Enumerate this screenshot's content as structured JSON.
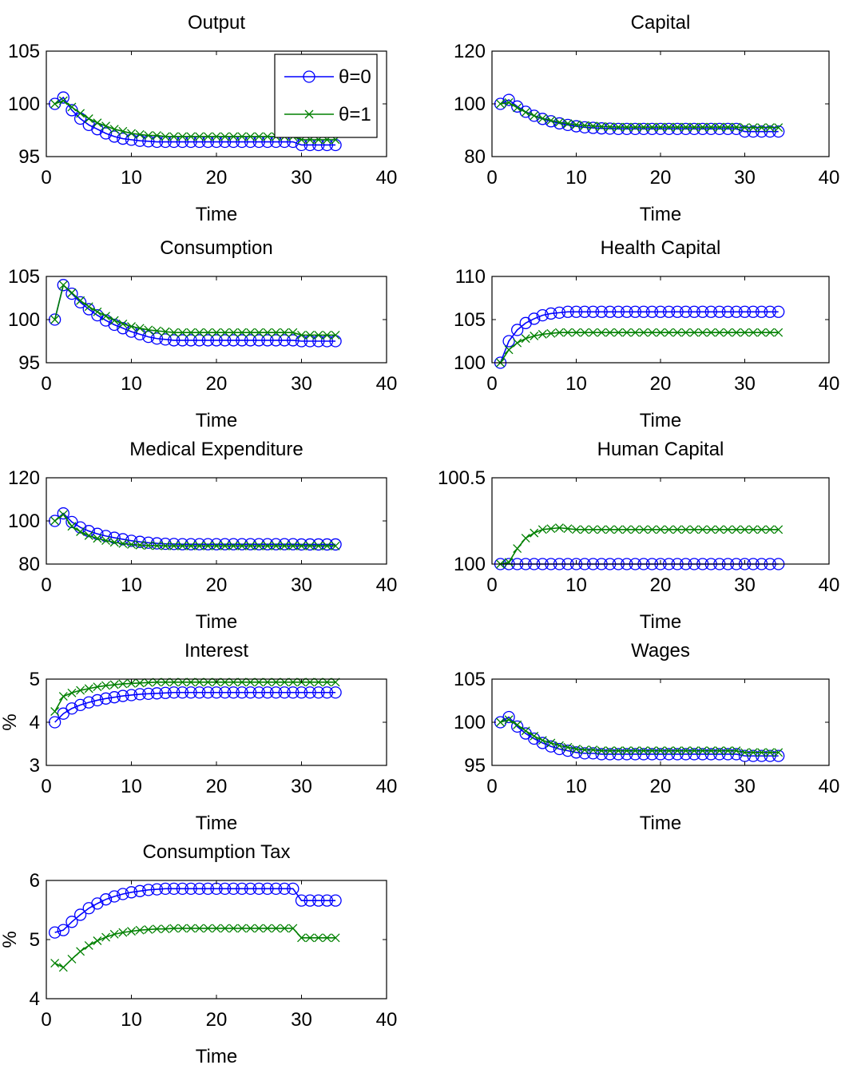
{
  "legend": {
    "placement": "top-right (Output panel)",
    "entries": [
      {
        "label": "θ=0",
        "color": "#0000ff",
        "marker": "circle"
      },
      {
        "label": "θ=1",
        "color": "#008000",
        "marker": "x"
      }
    ]
  },
  "chart_data": [
    {
      "type": "line",
      "title": "Output",
      "xlabel": "Time",
      "ylabel": "",
      "xlim": [
        0,
        40
      ],
      "ylim": [
        95,
        105
      ],
      "xticks": [
        0,
        10,
        20,
        30,
        40
      ],
      "yticks": [
        95,
        100,
        105
      ],
      "x": [
        1,
        2,
        3,
        4,
        5,
        6,
        7,
        8,
        9,
        10,
        11,
        12,
        13,
        14,
        15,
        16,
        17,
        18,
        19,
        20,
        21,
        22,
        23,
        24,
        25,
        26,
        27,
        28,
        29,
        30,
        31,
        32,
        33,
        34
      ],
      "series": [
        {
          "name": "θ=0",
          "values": [
            100,
            100.6,
            99.4,
            98.6,
            98,
            97.6,
            97.2,
            96.9,
            96.7,
            96.6,
            96.5,
            96.45,
            96.4,
            96.4,
            96.4,
            96.4,
            96.4,
            96.4,
            96.4,
            96.4,
            96.4,
            96.4,
            96.4,
            96.4,
            96.4,
            96.4,
            96.4,
            96.4,
            96.4,
            96.1,
            96.1,
            96.1,
            96.1,
            96.1
          ]
        },
        {
          "name": "θ=1",
          "values": [
            100,
            100.3,
            99.7,
            99.1,
            98.6,
            98.2,
            97.9,
            97.6,
            97.4,
            97.2,
            97.1,
            97,
            97,
            96.9,
            96.9,
            96.9,
            96.9,
            96.9,
            96.9,
            96.9,
            96.9,
            96.9,
            96.9,
            96.9,
            96.9,
            96.9,
            96.9,
            96.9,
            96.9,
            96.6,
            96.6,
            96.6,
            96.6,
            96.6
          ]
        }
      ]
    },
    {
      "type": "line",
      "title": "Capital",
      "xlabel": "Time",
      "ylabel": "",
      "xlim": [
        0,
        40
      ],
      "ylim": [
        80,
        120
      ],
      "xticks": [
        0,
        10,
        20,
        30,
        40
      ],
      "yticks": [
        80,
        100,
        120
      ],
      "x": [
        1,
        2,
        3,
        4,
        5,
        6,
        7,
        8,
        9,
        10,
        11,
        12,
        13,
        14,
        15,
        16,
        17,
        18,
        19,
        20,
        21,
        22,
        23,
        24,
        25,
        26,
        27,
        28,
        29,
        30,
        31,
        32,
        33,
        34
      ],
      "series": [
        {
          "name": "θ=0",
          "values": [
            100,
            101.5,
            99,
            97,
            95.5,
            94.3,
            93.4,
            92.6,
            92,
            91.5,
            91.1,
            90.9,
            90.7,
            90.6,
            90.5,
            90.5,
            90.5,
            90.5,
            90.5,
            90.5,
            90.5,
            90.5,
            90.5,
            90.5,
            90.5,
            90.5,
            90.5,
            90.5,
            90.5,
            89.5,
            89.5,
            89.5,
            89.5,
            89.5
          ]
        },
        {
          "name": "θ=1",
          "values": [
            100,
            100.5,
            98.5,
            96.8,
            95.5,
            94.5,
            93.7,
            93,
            92.5,
            92.1,
            91.8,
            91.6,
            91.4,
            91.3,
            91.2,
            91.2,
            91.2,
            91.2,
            91.2,
            91.2,
            91.2,
            91.2,
            91.2,
            91.2,
            91.2,
            91.2,
            91.2,
            91.2,
            91.2,
            91,
            91,
            91,
            91,
            91
          ]
        }
      ]
    },
    {
      "type": "line",
      "title": "Consumption",
      "xlabel": "Time",
      "ylabel": "",
      "xlim": [
        0,
        40
      ],
      "ylim": [
        95,
        105
      ],
      "xticks": [
        0,
        10,
        20,
        30,
        40
      ],
      "yticks": [
        95,
        100,
        105
      ],
      "x": [
        1,
        2,
        3,
        4,
        5,
        6,
        7,
        8,
        9,
        10,
        11,
        12,
        13,
        14,
        15,
        16,
        17,
        18,
        19,
        20,
        21,
        22,
        23,
        24,
        25,
        26,
        27,
        28,
        29,
        30,
        31,
        32,
        33,
        34
      ],
      "series": [
        {
          "name": "θ=0",
          "values": [
            100,
            104,
            103,
            102,
            101.2,
            100.5,
            99.9,
            99.4,
            99,
            98.6,
            98.3,
            98,
            97.8,
            97.7,
            97.6,
            97.6,
            97.6,
            97.6,
            97.6,
            97.6,
            97.6,
            97.6,
            97.6,
            97.6,
            97.6,
            97.6,
            97.6,
            97.6,
            97.6,
            97.5,
            97.5,
            97.5,
            97.5,
            97.5
          ]
        },
        {
          "name": "θ=1",
          "values": [
            100,
            104,
            103.1,
            102.2,
            101.5,
            100.9,
            100.4,
            99.9,
            99.5,
            99.2,
            99,
            98.8,
            98.7,
            98.6,
            98.5,
            98.5,
            98.5,
            98.5,
            98.5,
            98.5,
            98.5,
            98.5,
            98.5,
            98.5,
            98.5,
            98.5,
            98.5,
            98.5,
            98.5,
            98.2,
            98.2,
            98.2,
            98.2,
            98.2
          ]
        }
      ]
    },
    {
      "type": "line",
      "title": "Health Capital",
      "xlabel": "Time",
      "ylabel": "",
      "xlim": [
        0,
        40
      ],
      "ylim": [
        100,
        110
      ],
      "xticks": [
        0,
        10,
        20,
        30,
        40
      ],
      "yticks": [
        100,
        105,
        110
      ],
      "x": [
        1,
        2,
        3,
        4,
        5,
        6,
        7,
        8,
        9,
        10,
        11,
        12,
        13,
        14,
        15,
        16,
        17,
        18,
        19,
        20,
        21,
        22,
        23,
        24,
        25,
        26,
        27,
        28,
        29,
        30,
        31,
        32,
        33,
        34
      ],
      "series": [
        {
          "name": "θ=0",
          "values": [
            100,
            102.5,
            103.8,
            104.6,
            105.1,
            105.5,
            105.7,
            105.8,
            105.9,
            105.9,
            105.9,
            105.9,
            105.9,
            105.9,
            105.9,
            105.9,
            105.9,
            105.9,
            105.9,
            105.9,
            105.9,
            105.9,
            105.9,
            105.9,
            105.9,
            105.9,
            105.9,
            105.9,
            105.9,
            105.9,
            105.9,
            105.9,
            105.9,
            105.9
          ]
        },
        {
          "name": "θ=1",
          "values": [
            100,
            101.5,
            102.3,
            102.8,
            103.1,
            103.3,
            103.4,
            103.5,
            103.5,
            103.5,
            103.5,
            103.5,
            103.5,
            103.5,
            103.5,
            103.5,
            103.5,
            103.5,
            103.5,
            103.5,
            103.5,
            103.5,
            103.5,
            103.5,
            103.5,
            103.5,
            103.5,
            103.5,
            103.5,
            103.5,
            103.5,
            103.5,
            103.5,
            103.5
          ]
        }
      ]
    },
    {
      "type": "line",
      "title": "Medical Expenditure",
      "xlabel": "Time",
      "ylabel": "",
      "xlim": [
        0,
        40
      ],
      "ylim": [
        80,
        120
      ],
      "xticks": [
        0,
        10,
        20,
        30,
        40
      ],
      "yticks": [
        80,
        100,
        120
      ],
      "x": [
        1,
        2,
        3,
        4,
        5,
        6,
        7,
        8,
        9,
        10,
        11,
        12,
        13,
        14,
        15,
        16,
        17,
        18,
        19,
        20,
        21,
        22,
        23,
        24,
        25,
        26,
        27,
        28,
        29,
        30,
        31,
        32,
        33,
        34
      ],
      "series": [
        {
          "name": "θ=0",
          "values": [
            100,
            103.5,
            99.5,
            97,
            95.3,
            94,
            93,
            92.2,
            91.5,
            90.8,
            90.3,
            89.9,
            89.6,
            89.4,
            89.3,
            89.2,
            89.2,
            89.2,
            89.2,
            89.2,
            89.2,
            89.2,
            89.2,
            89.2,
            89.2,
            89.2,
            89.2,
            89.2,
            89.2,
            89.1,
            89.1,
            89.1,
            89.1,
            89.1
          ]
        },
        {
          "name": "θ=1",
          "values": [
            100,
            103,
            97.5,
            95,
            93.2,
            91.9,
            90.9,
            90.1,
            89.5,
            89.1,
            88.8,
            88.6,
            88.5,
            88.4,
            88.4,
            88.4,
            88.4,
            88.4,
            88.4,
            88.4,
            88.4,
            88.4,
            88.4,
            88.4,
            88.4,
            88.4,
            88.4,
            88.4,
            88.4,
            88.4,
            88.4,
            88.4,
            88.4,
            88.4
          ]
        }
      ]
    },
    {
      "type": "line",
      "title": "Human Capital",
      "xlabel": "Time",
      "ylabel": "",
      "xlim": [
        0,
        40
      ],
      "ylim": [
        100,
        100.5
      ],
      "xticks": [
        0,
        10,
        20,
        30,
        40
      ],
      "yticks": [
        100,
        100.5
      ],
      "x": [
        1,
        2,
        3,
        4,
        5,
        6,
        7,
        8,
        9,
        10,
        11,
        12,
        13,
        14,
        15,
        16,
        17,
        18,
        19,
        20,
        21,
        22,
        23,
        24,
        25,
        26,
        27,
        28,
        29,
        30,
        31,
        32,
        33,
        34
      ],
      "series": [
        {
          "name": "θ=0",
          "values": [
            100,
            100,
            100,
            100,
            100,
            100,
            100,
            100,
            100,
            100,
            100,
            100,
            100,
            100,
            100,
            100,
            100,
            100,
            100,
            100,
            100,
            100,
            100,
            100,
            100,
            100,
            100,
            100,
            100,
            100,
            100,
            100,
            100,
            100
          ]
        },
        {
          "name": "θ=1",
          "values": [
            100,
            100.01,
            100.09,
            100.15,
            100.18,
            100.2,
            100.205,
            100.21,
            100.205,
            100.2,
            100.2,
            100.2,
            100.2,
            100.2,
            100.2,
            100.2,
            100.2,
            100.2,
            100.2,
            100.2,
            100.2,
            100.2,
            100.2,
            100.2,
            100.2,
            100.2,
            100.2,
            100.2,
            100.2,
            100.2,
            100.2,
            100.2,
            100.2,
            100.2
          ]
        }
      ]
    },
    {
      "type": "line",
      "title": "Interest",
      "xlabel": "Time",
      "ylabel": "%",
      "xlim": [
        0,
        40
      ],
      "ylim": [
        3,
        5
      ],
      "xticks": [
        0,
        10,
        20,
        30,
        40
      ],
      "yticks": [
        3,
        4,
        5
      ],
      "x": [
        1,
        2,
        3,
        4,
        5,
        6,
        7,
        8,
        9,
        10,
        11,
        12,
        13,
        14,
        15,
        16,
        17,
        18,
        19,
        20,
        21,
        22,
        23,
        24,
        25,
        26,
        27,
        28,
        29,
        30,
        31,
        32,
        33,
        34
      ],
      "series": [
        {
          "name": "θ=0",
          "values": [
            4,
            4.2,
            4.32,
            4.4,
            4.46,
            4.51,
            4.55,
            4.58,
            4.61,
            4.63,
            4.65,
            4.66,
            4.67,
            4.68,
            4.69,
            4.69,
            4.69,
            4.69,
            4.69,
            4.69,
            4.69,
            4.69,
            4.69,
            4.69,
            4.69,
            4.69,
            4.69,
            4.69,
            4.69,
            4.69,
            4.69,
            4.69,
            4.69,
            4.69
          ]
        },
        {
          "name": "θ=1",
          "values": [
            4.25,
            4.6,
            4.68,
            4.74,
            4.78,
            4.82,
            4.85,
            4.87,
            4.89,
            4.9,
            4.91,
            4.92,
            4.93,
            4.93,
            4.93,
            4.93,
            4.93,
            4.93,
            4.93,
            4.93,
            4.93,
            4.93,
            4.93,
            4.93,
            4.93,
            4.93,
            4.93,
            4.93,
            4.93,
            4.93,
            4.93,
            4.93,
            4.93,
            4.93
          ]
        }
      ]
    },
    {
      "type": "line",
      "title": "Wages",
      "xlabel": "Time",
      "ylabel": "",
      "xlim": [
        0,
        40
      ],
      "ylim": [
        95,
        105
      ],
      "xticks": [
        0,
        10,
        20,
        30,
        40
      ],
      "yticks": [
        95,
        100,
        105
      ],
      "x": [
        1,
        2,
        3,
        4,
        5,
        6,
        7,
        8,
        9,
        10,
        11,
        12,
        13,
        14,
        15,
        16,
        17,
        18,
        19,
        20,
        21,
        22,
        23,
        24,
        25,
        26,
        27,
        28,
        29,
        30,
        31,
        32,
        33,
        34
      ],
      "series": [
        {
          "name": "θ=0",
          "values": [
            100,
            100.6,
            99.5,
            98.7,
            98.1,
            97.6,
            97.2,
            96.9,
            96.7,
            96.5,
            96.4,
            96.4,
            96.3,
            96.3,
            96.3,
            96.3,
            96.3,
            96.3,
            96.3,
            96.3,
            96.3,
            96.3,
            96.3,
            96.3,
            96.3,
            96.3,
            96.3,
            96.3,
            96.3,
            96.1,
            96.1,
            96.1,
            96.1,
            96.1
          ]
        },
        {
          "name": "θ=1",
          "values": [
            100,
            100.3,
            99.7,
            99,
            98.4,
            97.9,
            97.6,
            97.3,
            97.1,
            96.9,
            96.8,
            96.8,
            96.7,
            96.7,
            96.7,
            96.7,
            96.7,
            96.7,
            96.7,
            96.7,
            96.7,
            96.7,
            96.7,
            96.7,
            96.7,
            96.7,
            96.7,
            96.7,
            96.7,
            96.5,
            96.5,
            96.5,
            96.5,
            96.5
          ]
        }
      ]
    },
    {
      "type": "line",
      "title": "Consumption Tax",
      "xlabel": "Time",
      "ylabel": "%",
      "xlim": [
        0,
        40
      ],
      "ylim": [
        4,
        6
      ],
      "xticks": [
        0,
        10,
        20,
        30,
        40
      ],
      "yticks": [
        4,
        5,
        6
      ],
      "x": [
        1,
        2,
        3,
        4,
        5,
        6,
        7,
        8,
        9,
        10,
        11,
        12,
        13,
        14,
        15,
        16,
        17,
        18,
        19,
        20,
        21,
        22,
        23,
        24,
        25,
        26,
        27,
        28,
        29,
        30,
        31,
        32,
        33,
        34
      ],
      "series": [
        {
          "name": "θ=0",
          "values": [
            5.12,
            5.16,
            5.3,
            5.42,
            5.53,
            5.61,
            5.68,
            5.73,
            5.77,
            5.8,
            5.82,
            5.84,
            5.85,
            5.86,
            5.86,
            5.86,
            5.86,
            5.86,
            5.86,
            5.86,
            5.86,
            5.86,
            5.86,
            5.86,
            5.86,
            5.86,
            5.86,
            5.86,
            5.86,
            5.66,
            5.66,
            5.66,
            5.66,
            5.66
          ]
        },
        {
          "name": "θ=1",
          "values": [
            4.6,
            4.53,
            4.67,
            4.8,
            4.9,
            4.98,
            5.04,
            5.09,
            5.12,
            5.14,
            5.16,
            5.17,
            5.18,
            5.18,
            5.19,
            5.19,
            5.19,
            5.19,
            5.19,
            5.19,
            5.19,
            5.19,
            5.19,
            5.19,
            5.19,
            5.19,
            5.19,
            5.19,
            5.19,
            5.03,
            5.03,
            5.03,
            5.03,
            5.03
          ]
        }
      ]
    }
  ]
}
